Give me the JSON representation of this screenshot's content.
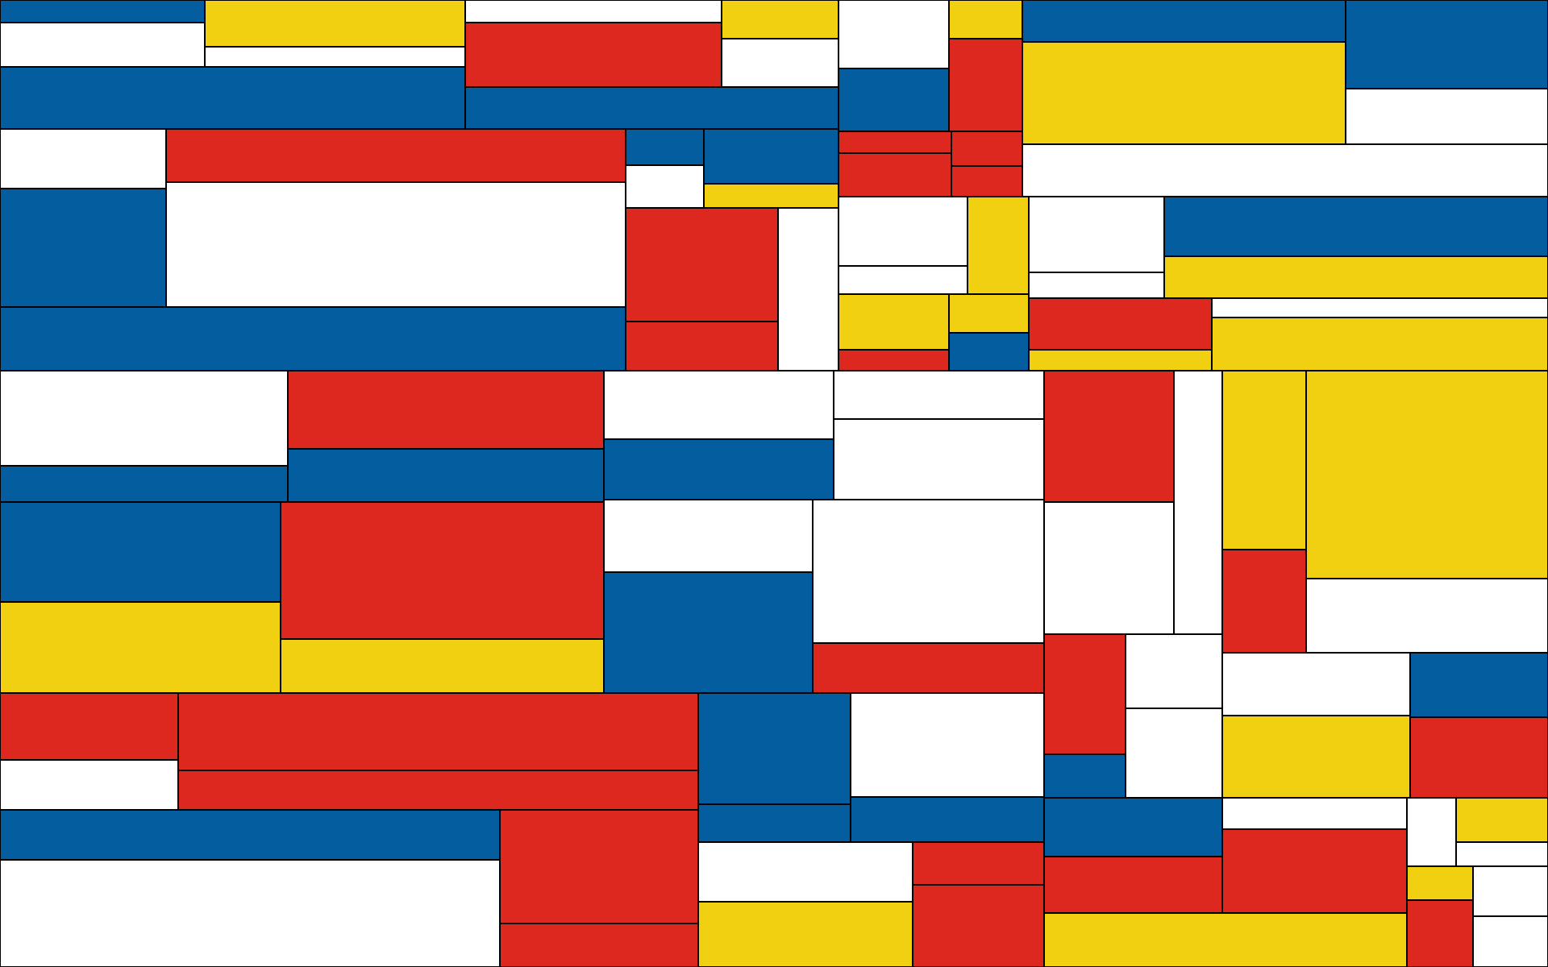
{
  "palette": {
    "red": "#dc281e",
    "blue": "#045d9e",
    "yellow": "#f0d011",
    "white": "#ffffff",
    "line": "#000000"
  }
}
